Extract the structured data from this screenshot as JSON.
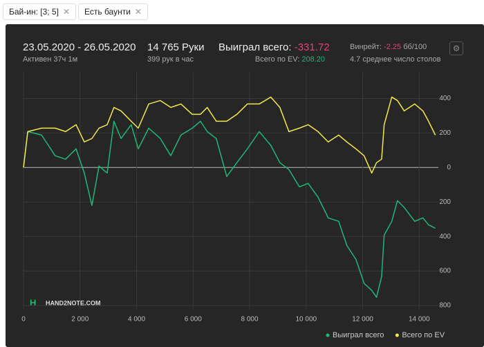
{
  "filters": [
    {
      "label": "Бай-ин: [3; 5]"
    },
    {
      "label": "Есть баунти"
    }
  ],
  "header": {
    "dates": "23.05.2020 - 26.05.2020",
    "active": "Активен 37ч 1м",
    "hands": "14 765 Руки",
    "hands_per_hour": "399 рук в час",
    "won_label": "Выиграл всего:",
    "won_value": "-331.72",
    "ev_label": "Всего по EV:",
    "ev_value": "208.20",
    "winrate_label": "Винрейт:",
    "winrate_value": "-2.25",
    "winrate_unit": "бб/100",
    "tables": "4.7 среднее число столов"
  },
  "logo": "HAND2NOTE.COM",
  "chart_data": {
    "type": "line",
    "x": [
      0,
      150,
      640,
      1120,
      1490,
      1860,
      2150,
      2420,
      2670,
      2960,
      3200,
      3450,
      3810,
      4060,
      4430,
      4840,
      5210,
      5570,
      5970,
      6260,
      6500,
      6820,
      7190,
      7550,
      7920,
      8340,
      8750,
      9070,
      9390,
      9760,
      10070,
      10420,
      10780,
      11150,
      11440,
      11760,
      12050,
      12320,
      12490,
      12670,
      12760,
      13030,
      13230,
      13470,
      13840,
      14130,
      14330,
      14570
    ],
    "series": [
      {
        "name": "Выиграл всего",
        "color": "#1fb877",
        "values": [
          0,
          208,
          188,
          68,
          48,
          108,
          -32,
          -220,
          8,
          -32,
          268,
          168,
          248,
          108,
          228,
          168,
          68,
          188,
          228,
          268,
          208,
          168,
          -52,
          28,
          108,
          208,
          128,
          28,
          -12,
          -112,
          -92,
          -172,
          -292,
          -312,
          -452,
          -532,
          -672,
          -712,
          -752,
          -632,
          -392,
          -312,
          -192,
          -232,
          -312,
          -292,
          -332,
          -352
        ]
      },
      {
        "name": "Всего по EV",
        "color": "#f2e94e",
        "values": [
          0,
          208,
          228,
          228,
          208,
          248,
          148,
          168,
          228,
          248,
          348,
          328,
          268,
          228,
          368,
          388,
          348,
          368,
          308,
          308,
          348,
          268,
          268,
          308,
          368,
          368,
          408,
          348,
          208,
          228,
          248,
          208,
          148,
          188,
          148,
          108,
          68,
          -32,
          28,
          48,
          248,
          408,
          388,
          328,
          368,
          328,
          268,
          188
        ]
      }
    ],
    "xlim": [
      0,
      14800
    ],
    "xticks": [
      0,
      {
        "value": 2000,
        "label": "2 000"
      },
      {
        "value": 4000,
        "label": "4 000"
      },
      {
        "value": 6000,
        "label": "6 000"
      },
      {
        "value": 8000,
        "label": "8 000"
      },
      {
        "value": 10000,
        "label": "10 000"
      },
      {
        "value": 12000,
        "label": "12 000"
      },
      {
        "value": 14000,
        "label": "14 000"
      }
    ],
    "ylim": [
      -820,
      550
    ],
    "yticks": [
      {
        "value": -800,
        "label": "800"
      },
      {
        "value": -600,
        "label": "600"
      },
      {
        "value": -400,
        "label": "400"
      },
      {
        "value": -200,
        "label": "200"
      },
      0,
      200,
      400
    ],
    "grid": true,
    "legend": "bottom-right"
  }
}
